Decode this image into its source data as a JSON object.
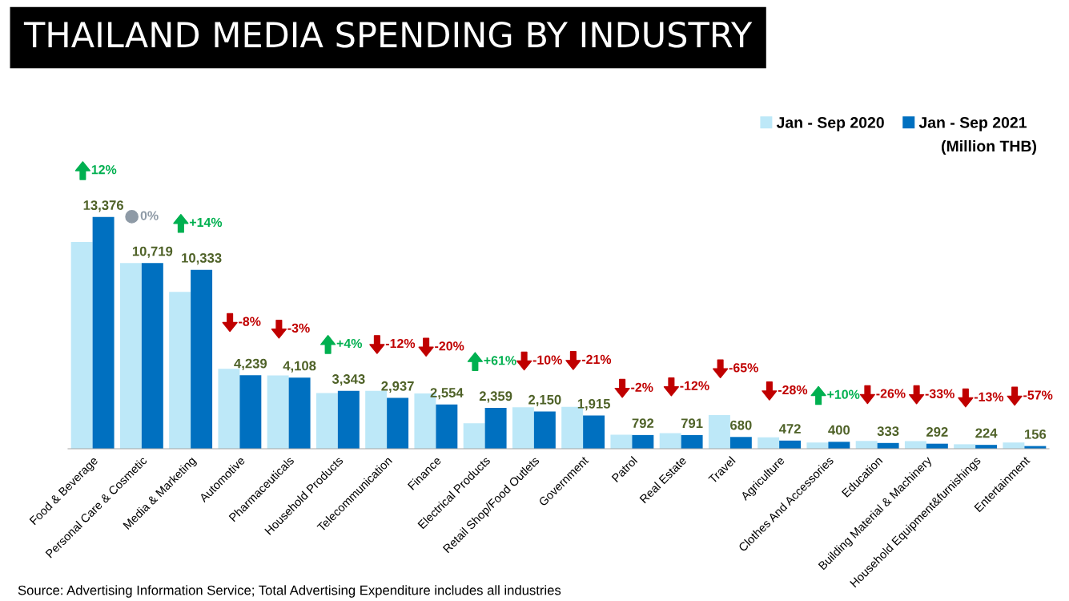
{
  "chart_data": {
    "type": "bar",
    "title": "THAILAND MEDIA SPENDING BY INDUSTRY",
    "categories": [
      "Food & Beverage",
      "Personal Care & Cosmetic",
      "Media & Marketing",
      "Automotive",
      "Pharmaceuticals",
      "Household Products",
      "Telecommunication",
      "Finance",
      "Electrical Products",
      "Retail Shop/Food Outlets",
      "Government",
      "Patrol",
      "Real Estate",
      "Travel",
      "Agriculture",
      "Clothes And Accessories",
      "Education",
      "Building Material & Machinery",
      "Household Equipment&furnishings",
      "Entertainment"
    ],
    "series": [
      {
        "name": "Jan - Sep 2020",
        "color": "#bde8f8",
        "values": [
          11940,
          10719,
          9060,
          4610,
          4230,
          3210,
          3340,
          3190,
          1470,
          2390,
          2420,
          810,
          900,
          1940,
          660,
          360,
          450,
          440,
          260,
          360
        ]
      },
      {
        "name": "Jan - Sep 2021",
        "color": "#0070c0",
        "values": [
          13376,
          10719,
          10333,
          4239,
          4108,
          3343,
          2937,
          2554,
          2359,
          2150,
          1915,
          792,
          791,
          680,
          472,
          400,
          333,
          292,
          224,
          156
        ],
        "value_labels": [
          "13,376",
          "10,719",
          "10,333",
          "4,239",
          "4,108",
          "3,343",
          "2,937",
          "2,554",
          "2,359",
          "2,150",
          "1,915",
          "792",
          "791",
          "680",
          "472",
          "400",
          "333",
          "292",
          "224",
          "156"
        ]
      }
    ],
    "tick_labels": "x",
    "legend": "top right",
    "annotations": [
      "12%",
      "0%",
      "+14%",
      "-8%",
      "-3%",
      "+4%",
      "-12%",
      "-20%",
      "+61%",
      "-10%",
      "-21%",
      "-2%",
      "-12%",
      "-65%",
      "-28%",
      "+10%",
      "-26%",
      "-33%",
      "-13%",
      "-57%",
      "(Million THB)",
      "Source: Advertising Information Service; Total Advertising Expenditure includes all industries"
    ]
  }
}
